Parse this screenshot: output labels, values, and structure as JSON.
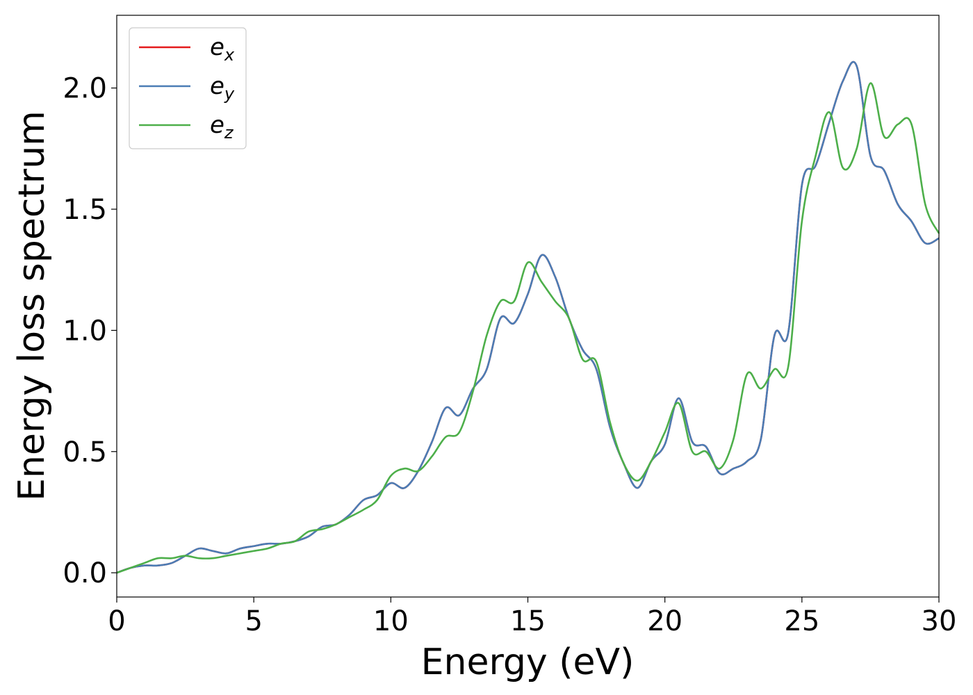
{
  "chart_data": {
    "type": "line",
    "title": "",
    "xlabel": "Energy (eV)",
    "ylabel": "Energy loss spectrum",
    "xlim": [
      0,
      30
    ],
    "ylim": [
      -0.1,
      2.3
    ],
    "xticks": [
      0,
      5,
      10,
      15,
      20,
      25,
      30
    ],
    "xtick_labels": [
      "0",
      "5",
      "10",
      "15",
      "20",
      "25",
      "30"
    ],
    "yticks": [
      0.0,
      0.5,
      1.0,
      1.5,
      2.0
    ],
    "ytick_labels": [
      "0.0",
      "0.5",
      "1.0",
      "1.5",
      "2.0"
    ],
    "grid": false,
    "legend_position": "top-left",
    "x": [
      0,
      0.5,
      1,
      1.5,
      2,
      2.5,
      3,
      3.5,
      4,
      4.5,
      5,
      5.5,
      6,
      6.5,
      7,
      7.5,
      8,
      8.5,
      9,
      9.5,
      10,
      10.5,
      11,
      11.5,
      12,
      12.5,
      13,
      13.5,
      14,
      14.5,
      15,
      15.5,
      16,
      16.5,
      17,
      17.5,
      18,
      18.5,
      19,
      19.5,
      20,
      20.5,
      21,
      21.5,
      22,
      22.5,
      23,
      23.5,
      24,
      24.5,
      25,
      25.5,
      26,
      26.5,
      27,
      27.5,
      28,
      28.5,
      29,
      29.5,
      30
    ],
    "series": [
      {
        "name": "e_x",
        "base": "e",
        "sub": "x",
        "color": "#e41a1c",
        "values": [
          0,
          0.02,
          0.03,
          0.03,
          0.04,
          0.07,
          0.1,
          0.09,
          0.08,
          0.1,
          0.11,
          0.12,
          0.12,
          0.13,
          0.15,
          0.19,
          0.2,
          0.24,
          0.3,
          0.32,
          0.37,
          0.35,
          0.42,
          0.54,
          0.68,
          0.65,
          0.76,
          0.84,
          1.05,
          1.03,
          1.15,
          1.31,
          1.22,
          1.05,
          0.92,
          0.84,
          0.6,
          0.45,
          0.35,
          0.46,
          0.53,
          0.72,
          0.54,
          0.52,
          0.41,
          0.43,
          0.46,
          0.55,
          0.98,
          0.99,
          1.6,
          1.68,
          1.86,
          2.03,
          2.09,
          1.72,
          1.66,
          1.52,
          1.45,
          1.36,
          1.38
        ]
      },
      {
        "name": "e_y",
        "base": "e",
        "sub": "y",
        "color": "#4b7db5",
        "values": [
          0,
          0.02,
          0.03,
          0.03,
          0.04,
          0.07,
          0.1,
          0.09,
          0.08,
          0.1,
          0.11,
          0.12,
          0.12,
          0.13,
          0.15,
          0.19,
          0.2,
          0.24,
          0.3,
          0.32,
          0.37,
          0.35,
          0.42,
          0.54,
          0.68,
          0.65,
          0.76,
          0.84,
          1.05,
          1.03,
          1.15,
          1.31,
          1.22,
          1.05,
          0.92,
          0.84,
          0.6,
          0.45,
          0.35,
          0.46,
          0.53,
          0.72,
          0.54,
          0.52,
          0.41,
          0.43,
          0.46,
          0.55,
          0.98,
          0.99,
          1.6,
          1.68,
          1.86,
          2.03,
          2.09,
          1.72,
          1.66,
          1.52,
          1.45,
          1.36,
          1.38
        ]
      },
      {
        "name": "e_z",
        "base": "e",
        "sub": "z",
        "color": "#4daf4a",
        "values": [
          0,
          0.02,
          0.04,
          0.06,
          0.06,
          0.07,
          0.06,
          0.06,
          0.07,
          0.08,
          0.09,
          0.1,
          0.12,
          0.13,
          0.17,
          0.18,
          0.2,
          0.23,
          0.26,
          0.3,
          0.4,
          0.43,
          0.42,
          0.48,
          0.56,
          0.58,
          0.75,
          0.98,
          1.12,
          1.12,
          1.28,
          1.2,
          1.12,
          1.05,
          0.88,
          0.87,
          0.62,
          0.45,
          0.38,
          0.46,
          0.58,
          0.7,
          0.5,
          0.5,
          0.43,
          0.55,
          0.82,
          0.76,
          0.84,
          0.85,
          1.45,
          1.72,
          1.9,
          1.67,
          1.75,
          2.02,
          1.8,
          1.85,
          1.85,
          1.52,
          1.4
        ]
      }
    ]
  }
}
